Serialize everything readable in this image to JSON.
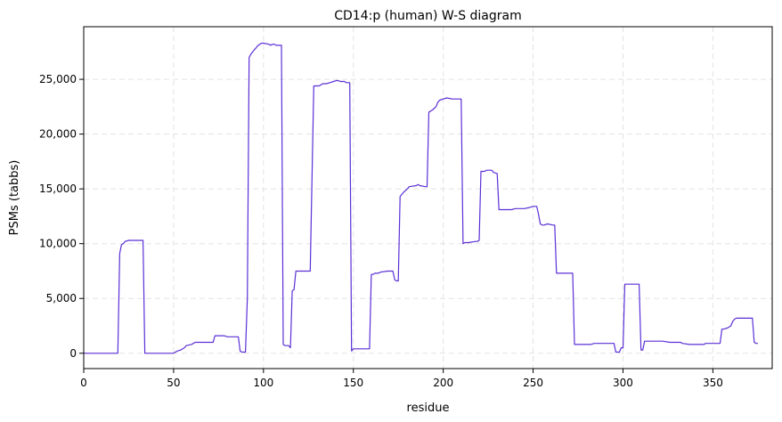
{
  "chart_data": {
    "type": "line",
    "title": "CD14:p (human) W-S diagram",
    "xlabel": "residue",
    "ylabel": "PSMs (tabbs)",
    "xlim": [
      0,
      383
    ],
    "ylim": [
      -1400,
      29800
    ],
    "grid": true,
    "line_color": "#5b2fd6",
    "xticks": [
      0,
      50,
      100,
      150,
      200,
      250,
      300,
      350
    ],
    "xtick_labels": [
      "0",
      "50",
      "100",
      "150",
      "200",
      "250",
      "300",
      "350"
    ],
    "yticks": [
      0,
      5000,
      10000,
      15000,
      20000,
      25000
    ],
    "ytick_labels": [
      "0",
      "5,000",
      "10,000",
      "15,000",
      "20,000",
      "25,000"
    ],
    "series": [
      {
        "x": [
          0,
          19,
          20,
          21,
          22,
          23,
          25,
          27,
          33,
          34,
          50,
          52,
          54,
          56,
          57,
          60,
          61,
          62,
          65,
          72,
          73,
          78,
          80,
          81,
          86,
          87,
          88,
          90,
          91,
          92,
          93,
          94,
          95,
          96,
          97,
          98,
          99,
          100,
          103,
          104,
          105,
          106,
          107,
          110,
          111,
          112,
          114,
          115,
          116,
          117,
          118,
          120,
          126,
          128,
          129,
          131,
          132,
          133,
          134,
          135,
          137,
          139,
          141,
          143,
          145,
          146,
          147,
          148,
          149,
          150,
          151,
          159,
          160,
          161,
          162,
          164,
          165,
          169,
          172,
          173,
          174,
          175,
          176,
          178,
          180,
          181,
          185,
          186,
          187,
          190,
          191,
          192,
          193,
          194,
          196,
          197,
          198,
          200,
          202,
          205,
          209,
          210,
          211,
          212,
          214,
          218,
          219,
          220,
          221,
          223,
          224,
          225,
          227,
          228,
          230,
          231,
          238,
          240,
          245,
          248,
          250,
          252,
          253,
          254,
          255,
          256,
          258,
          261,
          262,
          263,
          266,
          270,
          271,
          272,
          273,
          276,
          280,
          282,
          284,
          286,
          288,
          290,
          291,
          292,
          293,
          295,
          296,
          297,
          298,
          299,
          300,
          301,
          302,
          305,
          308,
          309,
          310,
          311,
          312,
          313,
          315,
          318,
          320,
          322,
          326,
          327,
          330,
          332,
          333,
          337,
          345,
          346,
          353,
          354,
          355,
          356,
          358,
          359,
          360,
          361,
          362,
          363,
          364,
          366,
          367,
          368,
          372,
          373,
          374,
          375
        ],
        "y": [
          0,
          0,
          9100,
          9900,
          10000,
          10200,
          10300,
          10300,
          10300,
          0,
          0,
          200,
          300,
          500,
          700,
          800,
          900,
          1000,
          1000,
          1000,
          1600,
          1600,
          1500,
          1500,
          1500,
          200,
          100,
          100,
          5000,
          27000,
          27300,
          27500,
          27700,
          27900,
          28100,
          28200,
          28300,
          28300,
          28200,
          28100,
          28200,
          28200,
          28100,
          28100,
          800,
          700,
          700,
          500,
          5700,
          5800,
          7500,
          7500,
          7500,
          24400,
          24400,
          24400,
          24500,
          24600,
          24600,
          24600,
          24700,
          24800,
          24900,
          24800,
          24800,
          24700,
          24700,
          24700,
          200,
          400,
          400,
          400,
          7200,
          7200,
          7300,
          7300,
          7400,
          7500,
          7500,
          6700,
          6600,
          6600,
          14300,
          14700,
          15000,
          15200,
          15300,
          15400,
          15300,
          15200,
          15200,
          22000,
          22100,
          22200,
          22500,
          22900,
          23100,
          23200,
          23300,
          23200,
          23200,
          23200,
          10000,
          10100,
          10100,
          10200,
          10200,
          10300,
          16600,
          16600,
          16700,
          16700,
          16700,
          16500,
          16400,
          13100,
          13100,
          13200,
          13200,
          13300,
          13400,
          13400,
          12700,
          11800,
          11700,
          11700,
          11800,
          11700,
          11700,
          7300,
          7300,
          7300,
          7300,
          7300,
          800,
          800,
          800,
          800,
          900,
          900,
          900,
          900,
          900,
          900,
          900,
          900,
          100,
          100,
          100,
          500,
          500,
          6300,
          6300,
          6300,
          6300,
          6300,
          300,
          300,
          1100,
          1100,
          1100,
          1100,
          1100,
          1100,
          1000,
          1000,
          1000,
          1000,
          900,
          800,
          800,
          900,
          900,
          900,
          2200,
          2200,
          2300,
          2400,
          2500,
          2900,
          3100,
          3200,
          3200,
          3200,
          3200,
          3200,
          3200,
          1000,
          900,
          900
        ]
      }
    ]
  }
}
